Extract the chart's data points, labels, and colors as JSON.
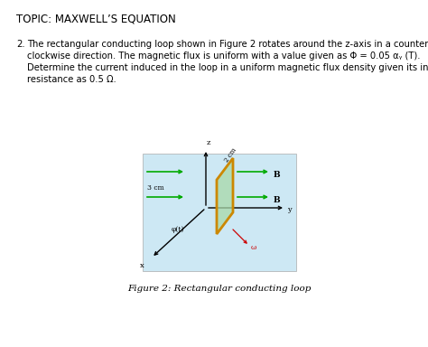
{
  "title": "TOPIC: MAXWELL’S EQUATION",
  "fig_caption": "Figure 2: Rectangular conducting loop",
  "fig_bg": "#cde8f4",
  "loop_color": "#cc8800",
  "loop_fill": "#a8d8a8",
  "arrow_color": "#00aa00",
  "page_bg": "white",
  "text_lines": [
    "2.  The rectangular conducting loop shown in Figure 2 rotates around the z-axis in a counter-",
    "    clockwise direction. The magnetic flux is uniform with a value given as B = 0.05 aᵧ (T).",
    "    Determine the current induced in the loop in a uniform magnetic flux density given its internal",
    "    resistance as 0.5 Ω."
  ],
  "title_fontsize": 8.5,
  "body_fontsize": 7.2,
  "caption_fontsize": 7.5
}
